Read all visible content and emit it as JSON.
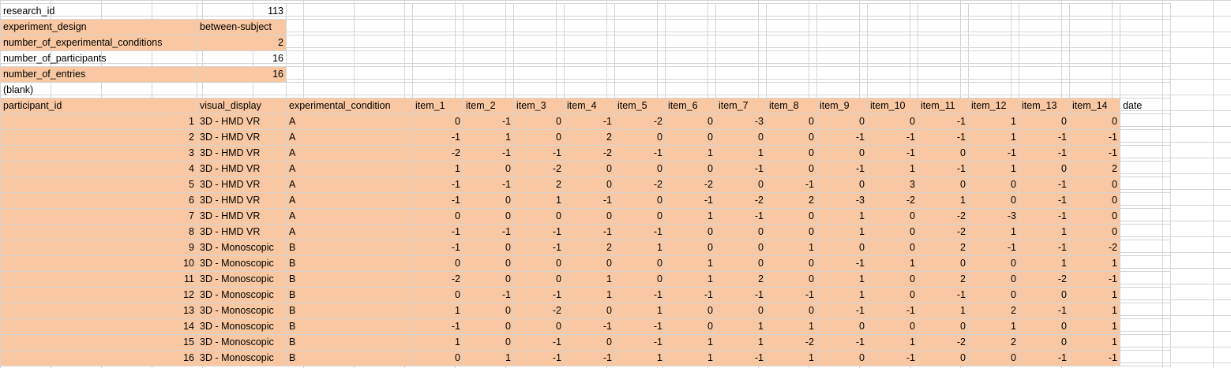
{
  "meta_rows": [
    {
      "label": "research_id",
      "value": "113",
      "highlight": false,
      "numeric": true
    },
    {
      "label": "experiment_design",
      "value": "between-subject",
      "highlight": true,
      "numeric": false
    },
    {
      "label": "number_of_experimental_conditions",
      "value": "2",
      "highlight": true,
      "numeric": true
    },
    {
      "label": "number_of_participants",
      "value": "16",
      "highlight": false,
      "numeric": true
    },
    {
      "label": "number_of_entries",
      "value": "16",
      "highlight": true,
      "numeric": true
    }
  ],
  "blank_label": "(blank)",
  "headers": [
    "participant_id",
    "visual_display",
    "experimental_condition",
    "item_1",
    "item_2",
    "item_3",
    "item_4",
    "item_5",
    "item_6",
    "item_7",
    "item_8",
    "item_9",
    "item_10",
    "item_11",
    "item_12",
    "item_13",
    "item_14",
    "date"
  ],
  "rows": [
    [
      "1",
      "3D - HMD VR",
      "A",
      "0",
      "-1",
      "0",
      "-1",
      "-2",
      "0",
      "-3",
      "0",
      "0",
      "0",
      "-1",
      "1",
      "0",
      "0"
    ],
    [
      "2",
      "3D - HMD VR",
      "A",
      "-1",
      "1",
      "0",
      "2",
      "0",
      "0",
      "0",
      "0",
      "-1",
      "-1",
      "-1",
      "1",
      "-1",
      "-1"
    ],
    [
      "3",
      "3D - HMD VR",
      "A",
      "-2",
      "-1",
      "-1",
      "-2",
      "-1",
      "1",
      "1",
      "0",
      "0",
      "-1",
      "0",
      "-1",
      "-1",
      "-1"
    ],
    [
      "4",
      "3D - HMD VR",
      "A",
      "1",
      "0",
      "-2",
      "0",
      "0",
      "0",
      "-1",
      "0",
      "-1",
      "1",
      "-1",
      "1",
      "0",
      "2"
    ],
    [
      "5",
      "3D - HMD VR",
      "A",
      "-1",
      "-1",
      "2",
      "0",
      "-2",
      "-2",
      "0",
      "-1",
      "0",
      "3",
      "0",
      "0",
      "-1",
      "0"
    ],
    [
      "6",
      "3D - HMD VR",
      "A",
      "-1",
      "0",
      "1",
      "-1",
      "0",
      "-1",
      "-2",
      "2",
      "-3",
      "-2",
      "1",
      "0",
      "-1",
      "0"
    ],
    [
      "7",
      "3D - HMD VR",
      "A",
      "0",
      "0",
      "0",
      "0",
      "0",
      "1",
      "-1",
      "0",
      "1",
      "0",
      "-2",
      "-3",
      "-1",
      "0"
    ],
    [
      "8",
      "3D - HMD VR",
      "A",
      "-1",
      "-1",
      "-1",
      "-1",
      "-1",
      "0",
      "0",
      "0",
      "1",
      "0",
      "-2",
      "1",
      "1",
      "0"
    ],
    [
      "9",
      "3D - Monoscopic",
      "B",
      "-1",
      "0",
      "-1",
      "2",
      "1",
      "0",
      "0",
      "1",
      "0",
      "0",
      "2",
      "-1",
      "-1",
      "-2"
    ],
    [
      "10",
      "3D - Monoscopic",
      "B",
      "0",
      "0",
      "0",
      "0",
      "0",
      "1",
      "0",
      "0",
      "-1",
      "1",
      "0",
      "0",
      "1",
      "1"
    ],
    [
      "11",
      "3D - Monoscopic",
      "B",
      "-2",
      "0",
      "0",
      "1",
      "0",
      "1",
      "2",
      "0",
      "1",
      "0",
      "2",
      "0",
      "-2",
      "-1"
    ],
    [
      "12",
      "3D - Monoscopic",
      "B",
      "0",
      "-1",
      "-1",
      "1",
      "-1",
      "-1",
      "-1",
      "-1",
      "1",
      "0",
      "-1",
      "0",
      "0",
      "1"
    ],
    [
      "13",
      "3D - Monoscopic",
      "B",
      "1",
      "0",
      "-2",
      "0",
      "1",
      "0",
      "0",
      "0",
      "-1",
      "-1",
      "1",
      "2",
      "-1",
      "1"
    ],
    [
      "14",
      "3D - Monoscopic",
      "B",
      "-1",
      "0",
      "0",
      "-1",
      "-1",
      "0",
      "1",
      "1",
      "0",
      "0",
      "0",
      "1",
      "0",
      "1"
    ],
    [
      "15",
      "3D - Monoscopic",
      "B",
      "1",
      "0",
      "-1",
      "0",
      "-1",
      "1",
      "1",
      "-2",
      "-1",
      "1",
      "-2",
      "2",
      "0",
      "1"
    ],
    [
      "16",
      "3D - Monoscopic",
      "B",
      "0",
      "1",
      "-1",
      "-1",
      "1",
      "1",
      "-1",
      "1",
      "0",
      "-1",
      "0",
      "0",
      "-1",
      "-1"
    ]
  ],
  "colors": {
    "highlight": "#f9c8a2",
    "grid": "#d4d4d4"
  }
}
